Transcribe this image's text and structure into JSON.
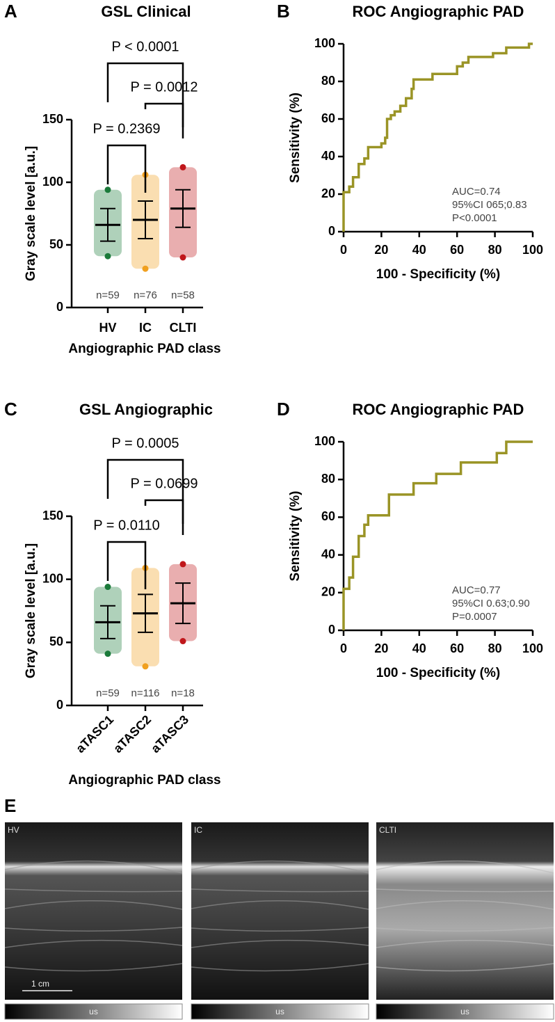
{
  "chart_data": [
    {
      "type": "dotplot",
      "panel": "A",
      "title": "GSL Clinical",
      "ylabel": "Gray scale level [a.u.]",
      "xlabel": "Angiographic PAD class",
      "categories": [
        "HV",
        "IC",
        "CLTI"
      ],
      "colors": [
        "#1b7a3a",
        "#f0a020",
        "#c0171b"
      ],
      "mean": [
        66,
        70,
        79
      ],
      "sd": [
        13,
        15,
        15
      ],
      "min": [
        41,
        31,
        40
      ],
      "max": [
        94,
        106,
        112
      ],
      "n_labels": [
        "n=59",
        "n=76",
        "n=58"
      ],
      "comparisons": [
        "P = 0.2369",
        "P = 0.0012",
        "P < 0.0001"
      ],
      "ylim": [
        0,
        150
      ],
      "yticks": [
        0,
        50,
        100,
        150
      ]
    },
    {
      "type": "roc",
      "panel": "B",
      "title": "ROC Angiographic PAD",
      "ylabel": "Sensitivity (%)",
      "xlabel": "100 - Specificity (%)",
      "color": "#9a9426",
      "x": [
        0,
        0,
        3,
        3,
        5,
        5,
        8,
        8,
        11,
        11,
        13,
        13,
        20,
        20,
        22,
        22,
        23,
        23,
        25,
        25,
        27,
        27,
        30,
        30,
        33,
        33,
        36,
        36,
        37,
        37,
        47,
        47,
        60,
        60,
        63,
        63,
        66,
        66,
        79,
        79,
        86,
        86,
        98,
        98,
        100
      ],
      "y": [
        0,
        21,
        21,
        24,
        24,
        29,
        29,
        36,
        36,
        39,
        39,
        45,
        45,
        47,
        47,
        50,
        50,
        60,
        60,
        62,
        62,
        64,
        64,
        67,
        67,
        71,
        71,
        76,
        76,
        81,
        81,
        84,
        84,
        88,
        88,
        90,
        90,
        93,
        93,
        95,
        95,
        98,
        98,
        100,
        100
      ],
      "annotations": [
        "AUC=0.74",
        "95%CI 065;0.83",
        "P<0.0001"
      ],
      "xlim": [
        0,
        100
      ],
      "ylim": [
        0,
        100
      ],
      "xticks": [
        0,
        20,
        40,
        60,
        80,
        100
      ],
      "yticks": [
        0,
        20,
        40,
        60,
        80,
        100
      ]
    },
    {
      "type": "dotplot",
      "panel": "C",
      "title": "GSL Angiographic",
      "ylabel": "Gray scale level [a.u.]",
      "xlabel": "Angiographic PAD class",
      "categories": [
        "aTASC1",
        "aTASC2",
        "aTASC3"
      ],
      "colors": [
        "#1b7a3a",
        "#f0a020",
        "#c0171b"
      ],
      "xtick_rotation": -45,
      "mean": [
        66,
        73,
        81
      ],
      "sd": [
        13,
        15,
        16
      ],
      "min": [
        41,
        31,
        51
      ],
      "max": [
        94,
        109,
        112
      ],
      "n_labels": [
        "n=59",
        "n=116",
        "n=18"
      ],
      "comparisons": [
        "P = 0.0110",
        "P = 0.0699",
        "P = 0.0005"
      ],
      "ylim": [
        0,
        150
      ],
      "yticks": [
        0,
        50,
        100,
        150
      ]
    },
    {
      "type": "roc",
      "panel": "D",
      "title": "ROC Angiographic PAD",
      "ylabel": "Sensitivity (%)",
      "xlabel": "100 - Specificity (%)",
      "color": "#9a9426",
      "x": [
        0,
        0,
        3,
        3,
        5,
        5,
        8,
        8,
        11,
        11,
        13,
        13,
        24,
        24,
        37,
        37,
        49,
        49,
        62,
        62,
        81,
        81,
        86,
        86,
        100
      ],
      "y": [
        0,
        22,
        22,
        28,
        28,
        39,
        39,
        50,
        50,
        56,
        56,
        61,
        61,
        72,
        72,
        78,
        78,
        83,
        83,
        89,
        89,
        94,
        94,
        100,
        100
      ],
      "annotations": [
        "AUC=0.77",
        "95%CI 0.63;0.90",
        "P=0.0007"
      ],
      "xlim": [
        0,
        100
      ],
      "ylim": [
        0,
        100
      ],
      "xticks": [
        0,
        20,
        40,
        60,
        80,
        100
      ],
      "yticks": [
        0,
        20,
        40,
        60,
        80,
        100
      ]
    }
  ],
  "panel_e": {
    "panel": "E",
    "images": [
      {
        "label": "HV"
      },
      {
        "label": "IC"
      },
      {
        "label": "CLTI"
      }
    ],
    "scale_bar": "1 cm",
    "colorbar_label": "us"
  }
}
